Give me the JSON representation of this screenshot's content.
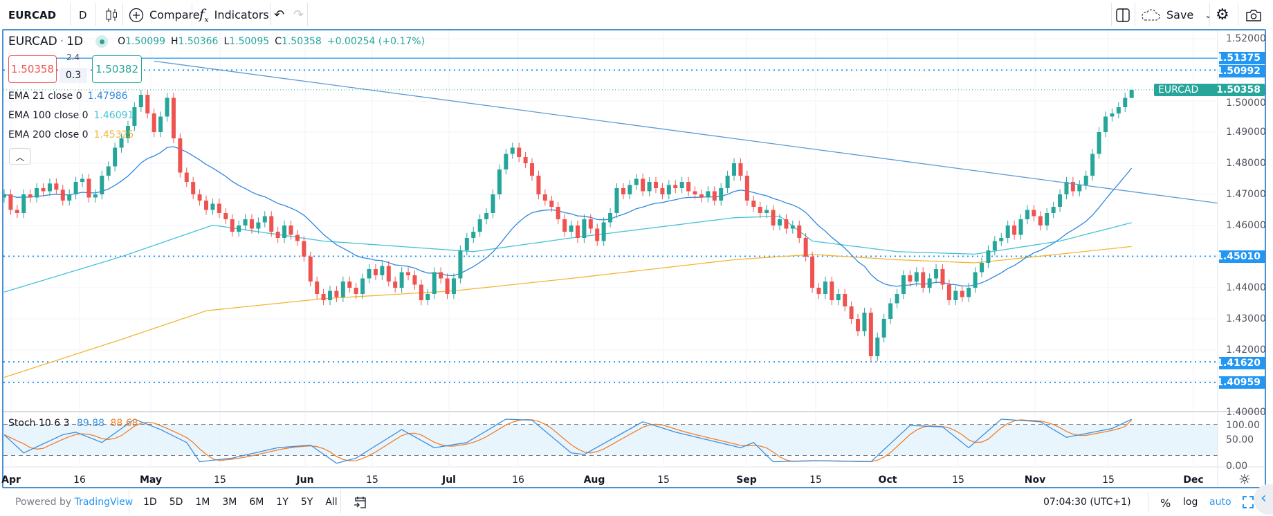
{
  "toolbar": {
    "symbol": "EURCAD",
    "interval": "D",
    "compare_label": "Compare",
    "indicators_label": "Indicators",
    "save_label": "Save",
    "icons": [
      "candles-icon",
      "plus-circle-icon",
      "fx-icon",
      "undo-icon",
      "redo-icon",
      "layout-icon",
      "cloud-icon",
      "chevron-down-icon",
      "gear-icon",
      "camera-icon"
    ]
  },
  "legend": {
    "title": "EURCAD",
    "interval": "1D",
    "ohlc": [
      {
        "k": "O",
        "v": "1.50099"
      },
      {
        "k": "H",
        "v": "1.50366"
      },
      {
        "k": "L",
        "v": "1.50095"
      },
      {
        "k": "C",
        "v": "1.50358"
      }
    ],
    "change": "+0.00254 (+0.17%)",
    "sell_price": "1.50358",
    "spread_top": "2.4",
    "spread": "0.3",
    "buy_price": "1.50382",
    "emas": [
      {
        "label": "EMA 21 close 0",
        "value": "1.47986",
        "color": "#2e86de"
      },
      {
        "label": "EMA 100 close 0",
        "value": "1.46091",
        "color": "#45c1d8"
      },
      {
        "label": "EMA 200 close 0",
        "value": "1.45325",
        "color": "#f2b632"
      }
    ],
    "collapse_icon": "chevron-up-icon"
  },
  "colors": {
    "up": "#26a69a",
    "down": "#ef5350",
    "accent": "#2196f3",
    "trendline": "#5b9bd5",
    "stoch_k": "#3d8fdc",
    "stoch_d": "#f07f2c"
  },
  "chart_data": {
    "type": "candlestick",
    "symbol": "EURCAD",
    "ylim": [
      1.4,
      1.52
    ],
    "price_ticks": [
      "1.52000",
      "1.50000",
      "1.49000",
      "1.48000",
      "1.47000",
      "1.46000",
      "1.44000",
      "1.43000",
      "1.42000",
      "1.40000"
    ],
    "time_ticks": [
      {
        "label": "Apr",
        "bold": true
      },
      {
        "label": "16"
      },
      {
        "label": "May",
        "bold": true
      },
      {
        "label": "15"
      },
      {
        "label": "Jun",
        "bold": true
      },
      {
        "label": "15"
      },
      {
        "label": "Jul",
        "bold": true
      },
      {
        "label": "16"
      },
      {
        "label": "Aug",
        "bold": true
      },
      {
        "label": "15"
      },
      {
        "label": "Sep",
        "bold": true
      },
      {
        "label": "15"
      },
      {
        "label": "Oct",
        "bold": true
      },
      {
        "label": "15"
      },
      {
        "label": "Nov",
        "bold": true
      },
      {
        "label": "15"
      },
      {
        "label": "Dec",
        "bold": true
      }
    ],
    "closes": [
      1.47,
      1.465,
      1.464,
      1.47,
      1.469,
      1.472,
      1.471,
      1.4735,
      1.4715,
      1.468,
      1.47,
      1.474,
      1.475,
      1.469,
      1.47,
      1.476,
      1.479,
      1.485,
      1.488,
      1.492,
      1.498,
      1.502,
      1.496,
      1.49,
      1.495,
      1.501,
      1.488,
      1.477,
      1.474,
      1.47,
      1.468,
      1.465,
      1.467,
      1.464,
      1.462,
      1.458,
      1.46,
      1.462,
      1.459,
      1.461,
      1.463,
      1.458,
      1.456,
      1.46,
      1.457,
      1.455,
      1.45,
      1.442,
      1.438,
      1.436,
      1.439,
      1.437,
      1.442,
      1.44,
      1.438,
      1.443,
      1.446,
      1.444,
      1.447,
      1.442,
      1.44,
      1.445,
      1.444,
      1.441,
      1.436,
      1.438,
      1.445,
      1.443,
      1.438,
      1.443,
      1.452,
      1.456,
      1.458,
      1.462,
      1.464,
      1.47,
      1.478,
      1.483,
      1.485,
      1.482,
      1.48,
      1.476,
      1.47,
      1.468,
      1.466,
      1.462,
      1.458,
      1.46,
      1.456,
      1.462,
      1.459,
      1.455,
      1.461,
      1.464,
      1.472,
      1.47,
      1.473,
      1.475,
      1.471,
      1.474,
      1.472,
      1.47,
      1.473,
      1.472,
      1.474,
      1.471,
      1.47,
      1.469,
      1.471,
      1.468,
      1.472,
      1.476,
      1.48,
      1.476,
      1.468,
      1.466,
      1.464,
      1.465,
      1.46,
      1.462,
      1.459,
      1.46,
      1.456,
      1.45,
      1.44,
      1.438,
      1.442,
      1.436,
      1.438,
      1.434,
      1.43,
      1.426,
      1.432,
      1.418,
      1.424,
      1.43,
      1.435,
      1.438,
      1.444,
      1.442,
      1.445,
      1.44,
      1.443,
      1.446,
      1.441,
      1.436,
      1.439,
      1.437,
      1.44,
      1.445,
      1.448,
      1.452,
      1.455,
      1.456,
      1.46,
      1.457,
      1.462,
      1.465,
      1.463,
      1.46,
      1.464,
      1.466,
      1.47,
      1.474,
      1.471,
      1.473,
      1.476,
      1.483,
      1.49,
      1.495,
      1.496,
      1.498,
      1.50099,
      1.50358
    ],
    "last_bar": {
      "open": 1.50099,
      "high": 1.50366,
      "low": 1.50095,
      "close": 1.50358
    },
    "ema100_points": [
      [
        0,
        1.4386
      ],
      [
        18,
        1.45
      ],
      [
        32,
        1.4601
      ],
      [
        49,
        1.455
      ],
      [
        72,
        1.4516
      ],
      [
        87,
        1.456
      ],
      [
        112,
        1.4625
      ],
      [
        119,
        1.463
      ],
      [
        124,
        1.455
      ],
      [
        137,
        1.4516
      ],
      [
        149,
        1.4508
      ],
      [
        162,
        1.455
      ],
      [
        173,
        1.46091
      ]
    ],
    "ema200_points": [
      [
        0,
        1.4112
      ],
      [
        18,
        1.4234
      ],
      [
        31,
        1.4326
      ],
      [
        49,
        1.4365
      ],
      [
        69,
        1.439
      ],
      [
        87,
        1.443
      ],
      [
        112,
        1.449
      ],
      [
        124,
        1.4507
      ],
      [
        137,
        1.449
      ],
      [
        149,
        1.448
      ],
      [
        162,
        1.4508
      ],
      [
        173,
        1.45325
      ]
    ],
    "ema21_last": 1.47986,
    "trendline": {
      "from": [
        23,
        1.5128
      ],
      "to_price_at_right_edge": 1.4672
    },
    "levels": [
      {
        "value": "1.51375",
        "style": "solid"
      },
      {
        "value": "1.50992",
        "style": "dotted"
      },
      {
        "value": "1.45010",
        "style": "dotted"
      },
      {
        "value": "1.41620",
        "style": "dotted"
      },
      {
        "value": "1.40959",
        "style": "dotted"
      }
    ],
    "current_price_label": {
      "symbol": "EURCAD",
      "value": "1.50358"
    },
    "stochastic": {
      "label": "Stoch 10 6 3",
      "k_value": "89.88",
      "d_value": "88.68",
      "ticks": [
        "100.00",
        "50.00",
        "0.00"
      ],
      "bands": [
        20,
        80
      ],
      "k_points": [
        [
          0,
          60
        ],
        [
          3,
          25
        ],
        [
          9,
          60
        ],
        [
          11,
          65
        ],
        [
          15,
          45
        ],
        [
          20,
          90
        ],
        [
          24,
          70
        ],
        [
          28,
          45
        ],
        [
          30,
          8
        ],
        [
          35,
          15
        ],
        [
          42,
          35
        ],
        [
          47,
          40
        ],
        [
          51,
          5
        ],
        [
          54,
          15
        ],
        [
          61,
          70
        ],
        [
          66,
          35
        ],
        [
          71,
          45
        ],
        [
          77,
          90
        ],
        [
          81,
          88
        ],
        [
          87,
          25
        ],
        [
          89,
          22
        ],
        [
          98,
          85
        ],
        [
          103,
          65
        ],
        [
          108,
          50
        ],
        [
          113,
          35
        ],
        [
          115,
          45
        ],
        [
          118,
          8
        ],
        [
          124,
          10
        ],
        [
          133,
          8
        ],
        [
          139,
          78
        ],
        [
          144,
          75
        ],
        [
          148,
          35
        ],
        [
          153,
          90
        ],
        [
          159,
          85
        ],
        [
          163,
          55
        ],
        [
          170,
          72
        ],
        [
          173,
          89.88
        ]
      ]
    }
  },
  "bottom_bar": {
    "powered_by": "Powered by ",
    "brand": "TradingView",
    "ranges": [
      "1D",
      "5D",
      "1M",
      "3M",
      "6M",
      "1Y",
      "5Y",
      "All"
    ],
    "clock": "07:04:30 (UTC+1)",
    "percent": "%",
    "log": "log",
    "auto": "auto"
  }
}
